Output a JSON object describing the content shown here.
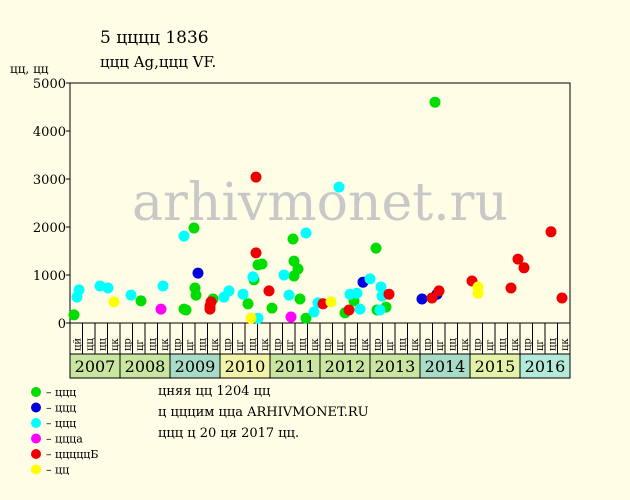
{
  "chart_data": {
    "type": "scatter",
    "title": "5 цццц 1836",
    "subtitle": "ццц Ag,ццц VF.",
    "y_label": "цц, цц",
    "watermark": "arhivmonet.ru",
    "xlim": [
      2007,
      2017
    ],
    "ylim": [
      0,
      5000
    ],
    "yticks": [
      0,
      1000,
      2000,
      3000,
      4000,
      5000
    ],
    "xticks": [
      2007,
      2008,
      2009,
      2010,
      2011,
      2012,
      2013,
      2014,
      2015,
      2016
    ],
    "xtick_colors": [
      "#c8e6a0",
      "#c8e6a0",
      "#a8dcc8",
      "#f2f2a8",
      "#c8e6a0",
      "#c8e6a0",
      "#c8e6a0",
      "#a8dcc8",
      "#e2f2a8",
      "#b4eadc"
    ],
    "quarter_labels": [
      "цй",
      "цц",
      "цц",
      "цк",
      "цр",
      "цг",
      "цц",
      "цк",
      "цр",
      "цг",
      "цц",
      "цк",
      "цр",
      "цг",
      "цц",
      "цк",
      "цр",
      "цг",
      "цц",
      "цк",
      "цр",
      "цг",
      "цц",
      "цк",
      "цр",
      "цг",
      "цц",
      "цк",
      "цр",
      "цг",
      "цц",
      "цк",
      "цр",
      "цг",
      "цц",
      "цк",
      "цр",
      "цг",
      "цц",
      "цк"
    ],
    "series": [
      {
        "name": "– ццц",
        "color": "#00dd00",
        "x": [
          2007.08,
          2008.42,
          2009.28,
          2009.32,
          2009.48,
          2009.5,
          2009.52,
          2009.86,
          2010.56,
          2010.68,
          2010.76,
          2010.84,
          2011.04,
          2011.46,
          2011.48,
          2011.48,
          2011.56,
          2011.6,
          2011.72,
          2012.5,
          2012.68,
          2013.12,
          2013.14,
          2013.32,
          2014.3
        ],
        "values": [
          170,
          460,
          290,
          270,
          1980,
          730,
          580,
          500,
          400,
          900,
          1210,
          1230,
          310,
          1750,
          1290,
          980,
          1125,
          500,
          100,
          210,
          460,
          1560,
          270,
          330,
          4600
        ]
      },
      {
        "name": "– ццц",
        "color": "#0000dd",
        "x": [
          2009.56,
          2012.86,
          2014.04,
          2014.34
        ],
        "values": [
          1040,
          850,
          500,
          600
        ]
      },
      {
        "name": "– ццц",
        "color": "#00ffff",
        "x": [
          2007.14,
          2007.18,
          2007.6,
          2007.76,
          2008.22,
          2008.86,
          2009.28,
          2010.08,
          2010.18,
          2010.46,
          2010.66,
          2010.76,
          2011.28,
          2011.38,
          2011.72,
          2011.88,
          2011.96,
          2012.38,
          2012.6,
          2012.74,
          2012.8,
          2013.0,
          2013.22,
          2013.24,
          2013.2
        ],
        "values": [
          540,
          690,
          770,
          730,
          580,
          770,
          1810,
          540,
          670,
          600,
          960,
          100,
          1000,
          580,
          1875,
          230,
          420,
          2830,
          600,
          620,
          290,
          920,
          750,
          560,
          270
        ]
      },
      {
        "name": "– ццца",
        "color": "#ff00ff",
        "x": [
          2008.82,
          2011.42
        ],
        "values": [
          290,
          125
        ]
      },
      {
        "name": "– цццццБ",
        "color": "#ee0000",
        "x": [
          2009.8,
          2009.8,
          2009.82,
          2010.72,
          2010.72,
          2010.98,
          2012.06,
          2012.58,
          2013.38,
          2014.24,
          2014.38,
          2015.04,
          2015.82,
          2015.96,
          2016.08,
          2016.62,
          2016.84
        ],
        "values": [
          350,
          290,
          440,
          3040,
          1460,
          670,
          400,
          270,
          600,
          520,
          670,
          875,
          730,
          1330,
          1150,
          1900,
          520
        ]
      },
      {
        "name": "– цц",
        "color": "#ffff00",
        "x": [
          2007.88,
          2010.62,
          2012.22,
          2015.16,
          2015.16
        ],
        "values": [
          440,
          100,
          440,
          750,
          620
        ]
      }
    ],
    "notes": [
      "цняя цц 1204 цц",
      "ц цццим цца ARHIVMONET.RU",
      "ццц ц 20 ця 2017 цц."
    ]
  }
}
